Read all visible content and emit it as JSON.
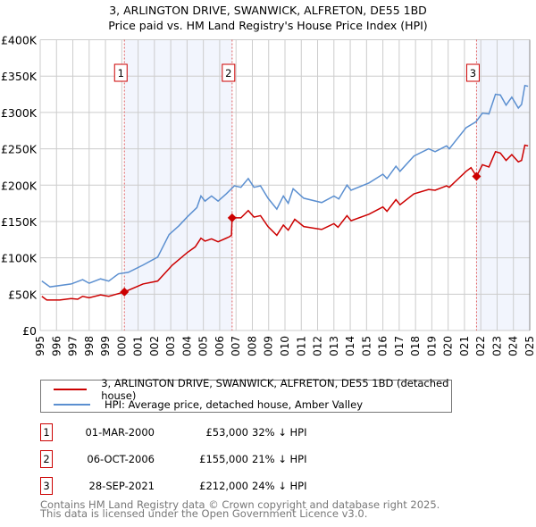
{
  "chart_data": {
    "type": "line",
    "title": "3, ARLINGTON DRIVE, SWANWICK, ALFRETON, DE55 1BD",
    "subtitle": "Price paid vs. HM Land Registry's House Price Index (HPI)",
    "xlim": [
      1995,
      2025
    ],
    "ylim": [
      0,
      400000
    ],
    "x_ticks": [
      "1995",
      "1996",
      "1997",
      "1998",
      "1999",
      "2000",
      "2001",
      "2002",
      "2003",
      "2004",
      "2005",
      "2006",
      "2007",
      "2008",
      "2009",
      "2010",
      "2011",
      "2012",
      "2013",
      "2014",
      "2015",
      "2016",
      "2017",
      "2018",
      "2019",
      "2020",
      "2021",
      "2022",
      "2023",
      "2024",
      "2025"
    ],
    "y_ticks": [
      {
        "v": 0,
        "label": "£0"
      },
      {
        "v": 50000,
        "label": "£50K"
      },
      {
        "v": 100000,
        "label": "£100K"
      },
      {
        "v": 150000,
        "label": "£150K"
      },
      {
        "v": 200000,
        "label": "£200K"
      },
      {
        "v": 250000,
        "label": "£250K"
      },
      {
        "v": 300000,
        "label": "£300K"
      },
      {
        "v": 350000,
        "label": "£350K"
      },
      {
        "v": 400000,
        "label": "£400K"
      }
    ],
    "grid": true,
    "series": [
      {
        "name": "3, ARLINGTON DRIVE, SWANWICK, ALFRETON, DE55 1BD (detached house)",
        "color": "#cc0000",
        "points": [
          [
            1995.1,
            47
          ],
          [
            1995.4,
            42
          ],
          [
            1996.2,
            42
          ],
          [
            1996.9,
            44
          ],
          [
            1997.3,
            43
          ],
          [
            1997.6,
            47
          ],
          [
            1998.0,
            45
          ],
          [
            1998.7,
            49
          ],
          [
            1999.2,
            47
          ],
          [
            2000.16,
            53
          ],
          [
            2001.3,
            64
          ],
          [
            2002.2,
            68
          ],
          [
            2003.1,
            90
          ],
          [
            2004.0,
            107
          ],
          [
            2004.5,
            115
          ],
          [
            2004.85,
            127
          ],
          [
            2005.1,
            123
          ],
          [
            2005.5,
            126
          ],
          [
            2005.9,
            122
          ],
          [
            2006.6,
            129
          ],
          [
            2006.72,
            131
          ],
          [
            2006.76,
            155
          ],
          [
            2007.3,
            155
          ],
          [
            2007.75,
            165
          ],
          [
            2008.1,
            156
          ],
          [
            2008.5,
            158
          ],
          [
            2008.96,
            143
          ],
          [
            2009.5,
            131
          ],
          [
            2009.9,
            145
          ],
          [
            2010.2,
            138
          ],
          [
            2010.6,
            153
          ],
          [
            2011.15,
            143
          ],
          [
            2012.25,
            139
          ],
          [
            2013.0,
            147
          ],
          [
            2013.25,
            142
          ],
          [
            2013.8,
            158
          ],
          [
            2014.05,
            151
          ],
          [
            2015.15,
            160
          ],
          [
            2016.0,
            170
          ],
          [
            2016.25,
            164
          ],
          [
            2016.8,
            180
          ],
          [
            2017.05,
            173
          ],
          [
            2017.9,
            188
          ],
          [
            2018.8,
            194
          ],
          [
            2019.2,
            193
          ],
          [
            2019.9,
            199
          ],
          [
            2020.07,
            197
          ],
          [
            2021.1,
            219
          ],
          [
            2021.4,
            224
          ],
          [
            2021.74,
            212
          ],
          [
            2022.1,
            228
          ],
          [
            2022.5,
            225
          ],
          [
            2022.9,
            246
          ],
          [
            2023.2,
            244
          ],
          [
            2023.55,
            234
          ],
          [
            2023.9,
            242
          ],
          [
            2024.3,
            232
          ],
          [
            2024.5,
            234
          ],
          [
            2024.7,
            255
          ],
          [
            2024.9,
            254
          ]
        ]
      },
      {
        "name": "HPI: Average price, detached house, Amber Valley",
        "color": "#5b8fd0",
        "points": [
          [
            1995.1,
            68
          ],
          [
            1995.6,
            60
          ],
          [
            1996.9,
            64
          ],
          [
            1997.6,
            70
          ],
          [
            1998.0,
            65
          ],
          [
            1998.7,
            71
          ],
          [
            1999.2,
            68
          ],
          [
            1999.8,
            78
          ],
          [
            2000.4,
            80
          ],
          [
            2001.3,
            90
          ],
          [
            2002.2,
            101
          ],
          [
            2002.9,
            132
          ],
          [
            2003.5,
            144
          ],
          [
            2004.0,
            156
          ],
          [
            2004.6,
            169
          ],
          [
            2004.85,
            185
          ],
          [
            2005.1,
            178
          ],
          [
            2005.5,
            185
          ],
          [
            2005.9,
            178
          ],
          [
            2006.4,
            188
          ],
          [
            2006.9,
            199
          ],
          [
            2007.3,
            197
          ],
          [
            2007.75,
            209
          ],
          [
            2008.1,
            197
          ],
          [
            2008.5,
            199
          ],
          [
            2008.96,
            182
          ],
          [
            2009.5,
            167
          ],
          [
            2009.9,
            185
          ],
          [
            2010.2,
            175
          ],
          [
            2010.5,
            195
          ],
          [
            2011.15,
            182
          ],
          [
            2012.25,
            176
          ],
          [
            2013.0,
            185
          ],
          [
            2013.3,
            181
          ],
          [
            2013.8,
            200
          ],
          [
            2014.05,
            193
          ],
          [
            2015.15,
            203
          ],
          [
            2016.0,
            215
          ],
          [
            2016.25,
            209
          ],
          [
            2016.8,
            226
          ],
          [
            2017.05,
            219
          ],
          [
            2017.9,
            240
          ],
          [
            2018.8,
            250
          ],
          [
            2019.2,
            246
          ],
          [
            2019.9,
            254
          ],
          [
            2020.07,
            250
          ],
          [
            2021.1,
            279
          ],
          [
            2021.7,
            287
          ],
          [
            2022.1,
            299
          ],
          [
            2022.5,
            298
          ],
          [
            2022.9,
            325
          ],
          [
            2023.2,
            324
          ],
          [
            2023.55,
            310
          ],
          [
            2023.9,
            321
          ],
          [
            2024.3,
            306
          ],
          [
            2024.5,
            311
          ],
          [
            2024.7,
            337
          ],
          [
            2024.9,
            336
          ]
        ]
      }
    ],
    "sales": [
      {
        "id": "1",
        "x": 2000.16,
        "value": 53,
        "date": "01-MAR-2000",
        "price": "£53,000",
        "hpi": "32% ↓ HPI"
      },
      {
        "id": "2",
        "x": 2006.76,
        "value": 155,
        "date": "06-OCT-2006",
        "price": "£155,000",
        "hpi": "21% ↓ HPI"
      },
      {
        "id": "3",
        "x": 2021.74,
        "value": 212,
        "date": "28-SEP-2021",
        "price": "£212,000",
        "hpi": "24% ↓ HPI"
      }
    ],
    "shaded_ranges": [
      [
        2000.16,
        2006.76
      ],
      [
        2021.74,
        2025
      ]
    ],
    "value_units": "thousands GBP",
    "legend_placement": "below"
  },
  "footer": {
    "line1": "Contains HM Land Registry data © Crown copyright and database right 2025.",
    "line2": "This data is licensed under the Open Government Licence v3.0."
  }
}
